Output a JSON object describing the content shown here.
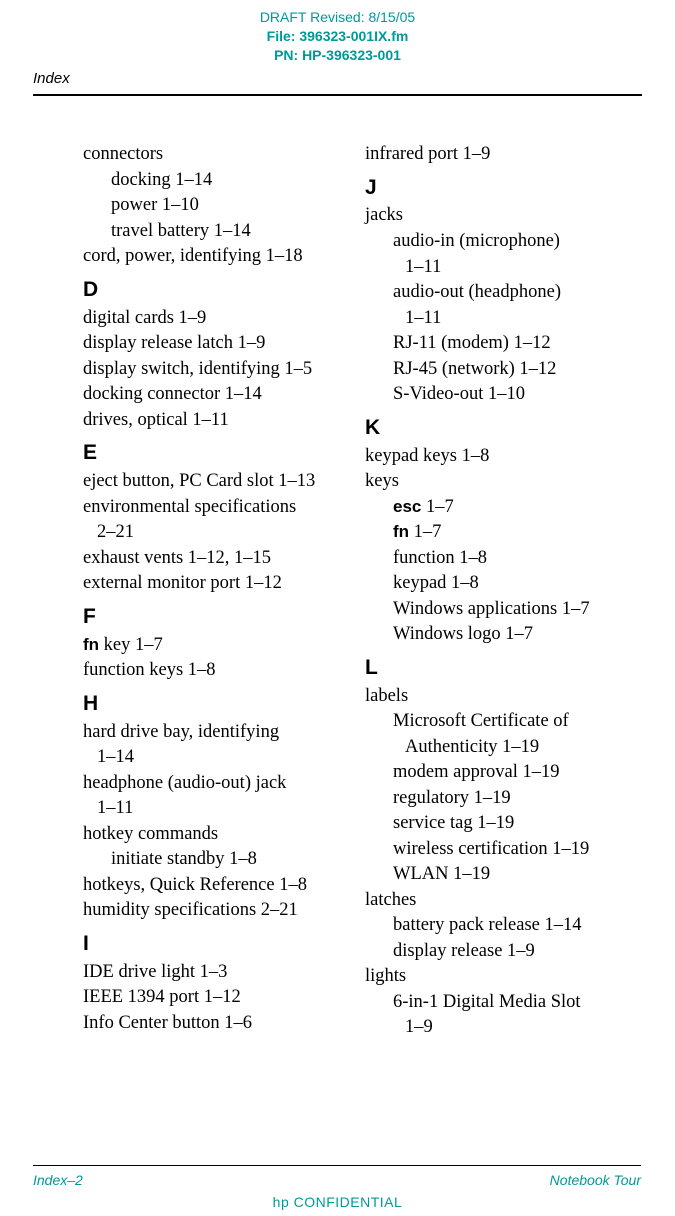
{
  "meta": {
    "draft": "DRAFT Revised: 8/15/05",
    "file": "File: 396323-001IX.fm",
    "pn": "PN: HP-396323-001"
  },
  "header": {
    "section": "Index"
  },
  "left": {
    "connectors": "connectors",
    "connectors_docking": "docking 1–14",
    "connectors_power": "power 1–10",
    "connectors_travel": "travel battery 1–14",
    "cord": "cord, power, identifying 1–18",
    "D": "D",
    "digital_cards": "digital cards 1–9",
    "display_release": "display release latch 1–9",
    "display_switch": "display switch, identifying 1–5",
    "docking_connector": "docking connector 1–14",
    "drives_optical": "drives, optical 1–11",
    "E": "E",
    "eject": "eject button, PC Card slot 1–13",
    "env_spec_a": "environmental specifications",
    "env_spec_b": "2–21",
    "exhaust": "exhaust vents 1–12, 1–15",
    "ext_monitor": "external monitor port 1–12",
    "F": "F",
    "fn_key_prefix": "fn",
    "fn_key_rest": " key 1–7",
    "function_keys": "function keys 1–8",
    "H": "H",
    "hd_bay_a": "hard drive bay, identifying",
    "hd_bay_b": "1–14",
    "headphone_a": "headphone (audio-out) jack",
    "headphone_b": "1–11",
    "hotkey_cmds": "hotkey commands",
    "hotkey_sub": "initiate standby 1–8",
    "hotkeys_ref": "hotkeys, Quick Reference 1–8",
    "humidity": "humidity specifications 2–21",
    "I": "I",
    "ide": "IDE drive light 1–3",
    "ieee": "IEEE 1394 port 1–12",
    "info_center": "Info Center button 1–6"
  },
  "right": {
    "infrared": "infrared port 1–9",
    "J": "J",
    "jacks": "jacks",
    "audio_in_a": "audio-in (microphone)",
    "audio_in_b": "1–11",
    "audio_out_a": "audio-out (headphone)",
    "audio_out_b": "1–11",
    "rj11": "RJ-11 (modem) 1–12",
    "rj45": "RJ-45 (network) 1–12",
    "svideo": "S-Video-out 1–10",
    "K": "K",
    "keypad": "keypad keys 1–8",
    "keys": "keys",
    "esc_prefix": "esc",
    "esc_rest": " 1–7",
    "fn_prefix": "fn",
    "fn_rest": " 1–7",
    "function": "function 1–8",
    "keypad2": "keypad 1–8",
    "win_apps": "Windows applications 1–7",
    "win_logo": "Windows logo 1–7",
    "L": "L",
    "labels": "labels",
    "ms_cert_a": "Microsoft Certificate of",
    "ms_cert_b": "Authenticity 1–19",
    "modem_appr": "modem approval 1–19",
    "regulatory": "regulatory 1–19",
    "service_tag": "service tag 1–19",
    "wireless_cert": "wireless certification 1–19",
    "wlan": "WLAN 1–19",
    "latches": "latches",
    "batt_release": "battery pack release 1–14",
    "disp_release": "display release 1–9",
    "lights": "lights",
    "six_in_one_a": "6-in-1 Digital Media Slot",
    "six_in_one_b": "1–9"
  },
  "footer": {
    "left": "Index–2",
    "right": "Notebook Tour",
    "confidential": "hp CONFIDENTIAL"
  },
  "colors": {
    "accent": "#009999",
    "text": "#000000",
    "background": "#ffffff"
  }
}
